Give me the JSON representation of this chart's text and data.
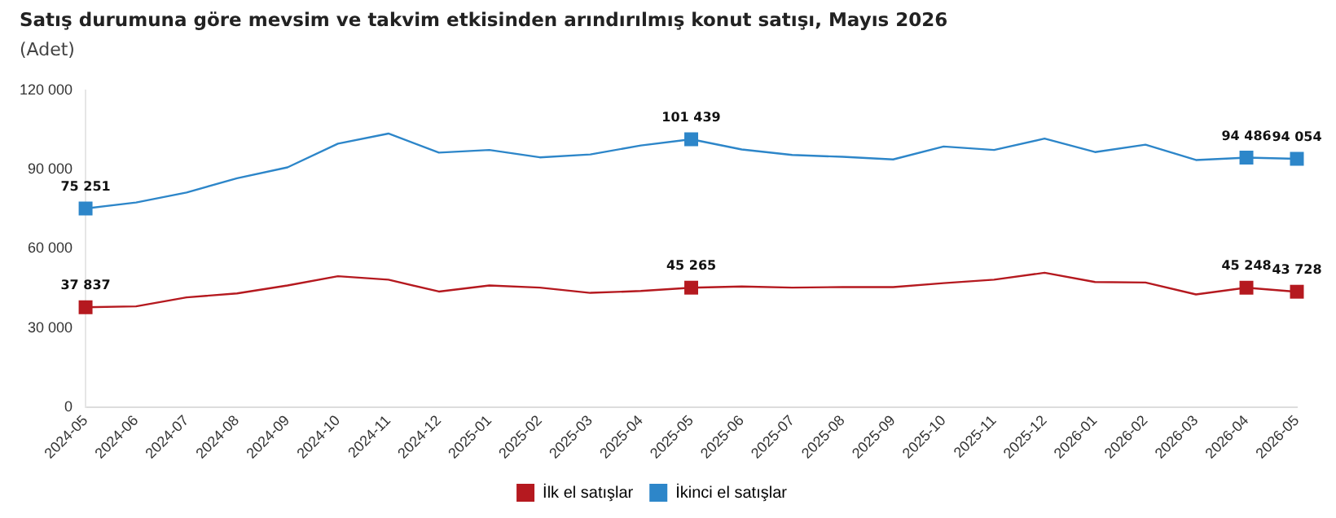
{
  "chart_data": {
    "type": "line",
    "title": "Satış durumuna göre mevsim ve takvim etkisinden arındırılmış konut satışı, Mayıs 2026",
    "subtitle": "(Adet)",
    "categories": [
      "2024-05",
      "2024-06",
      "2024-07",
      "2024-08",
      "2024-09",
      "2024-10",
      "2024-11",
      "2024-12",
      "2025-01",
      "2025-02",
      "2025-03",
      "2025-04",
      "2025-05",
      "2025-06",
      "2025-07",
      "2025-08",
      "2025-09",
      "2025-10",
      "2025-11",
      "2025-12",
      "2026-01",
      "2026-02",
      "2026-03",
      "2026-04",
      "2026-05"
    ],
    "series": [
      {
        "name": "İlk el satışlar",
        "color": "#b5191f",
        "values": [
          37837,
          38200,
          41600,
          43100,
          46100,
          49600,
          48300,
          43800,
          46100,
          45300,
          43300,
          44000,
          45265,
          45700,
          45300,
          45500,
          45500,
          47000,
          48300,
          50900,
          47400,
          47200,
          42700,
          45248,
          43728
        ],
        "value_labels": [
          "37 837",
          null,
          null,
          null,
          null,
          null,
          null,
          null,
          null,
          null,
          null,
          null,
          "45 265",
          null,
          null,
          null,
          null,
          null,
          null,
          null,
          null,
          null,
          null,
          "45 248",
          "43 728"
        ]
      },
      {
        "name": "İkinci el satışlar",
        "color": "#2d86c9",
        "values": [
          75251,
          77500,
          81300,
          86700,
          90800,
          99800,
          103600,
          96400,
          97400,
          94600,
          95700,
          99100,
          101439,
          97600,
          95500,
          94800,
          93800,
          98700,
          97400,
          101700,
          96600,
          99400,
          93600,
          94486,
          94054
        ],
        "value_labels": [
          "75 251",
          null,
          null,
          null,
          null,
          null,
          null,
          null,
          null,
          null,
          null,
          null,
          "101 439",
          null,
          null,
          null,
          null,
          null,
          null,
          null,
          null,
          null,
          null,
          "94 486",
          "94 054"
        ]
      }
    ],
    "ylim": [
      0,
      120000
    ],
    "yticks": [
      {
        "value": 0,
        "label": "0"
      },
      {
        "value": 30000,
        "label": "30 000"
      },
      {
        "value": 60000,
        "label": "60 000"
      },
      {
        "value": 90000,
        "label": "90 000"
      },
      {
        "value": 120000,
        "label": "120 000"
      }
    ],
    "grid": false,
    "legend": "bottom",
    "line_style": "solid"
  }
}
